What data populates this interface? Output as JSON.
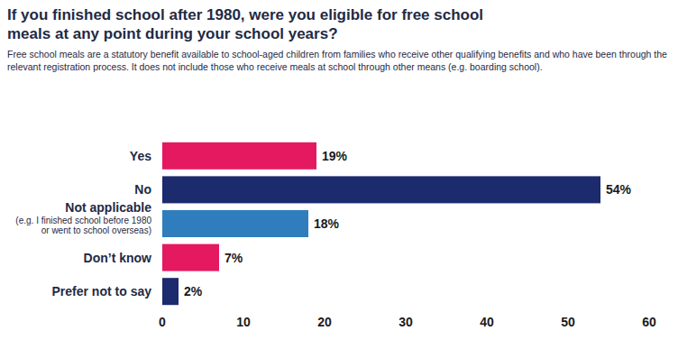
{
  "chart_data": {
    "type": "bar",
    "orientation": "horizontal",
    "title": "If you finished school after 1980, were you eligible for free school meals at any point during your school years?",
    "subtitle": "Free school meals are a statutory benefit available to school-aged children from families who receive other qualifying benefits and who have been through the relevant registration process. It does not include those who receive meals at school through other means (e.g. boarding school).",
    "categories": [
      "Yes",
      "No",
      "Not applicable (e.g. I finished school before 1980 or went to school overseas)",
      "Don’t know",
      "Prefer not to say"
    ],
    "values": [
      19,
      54,
      18,
      7,
      2
    ],
    "value_labels": [
      "19%",
      "54%",
      "18%",
      "7%",
      "2%"
    ],
    "colors": [
      "#e5195f",
      "#1c2a6e",
      "#2f7dbd",
      "#e5195f",
      "#1c2a6e"
    ],
    "xlim": [
      0,
      60
    ],
    "xticks": [
      0,
      10,
      20,
      30,
      40,
      50,
      60
    ],
    "data_labels": true,
    "grid": false
  }
}
